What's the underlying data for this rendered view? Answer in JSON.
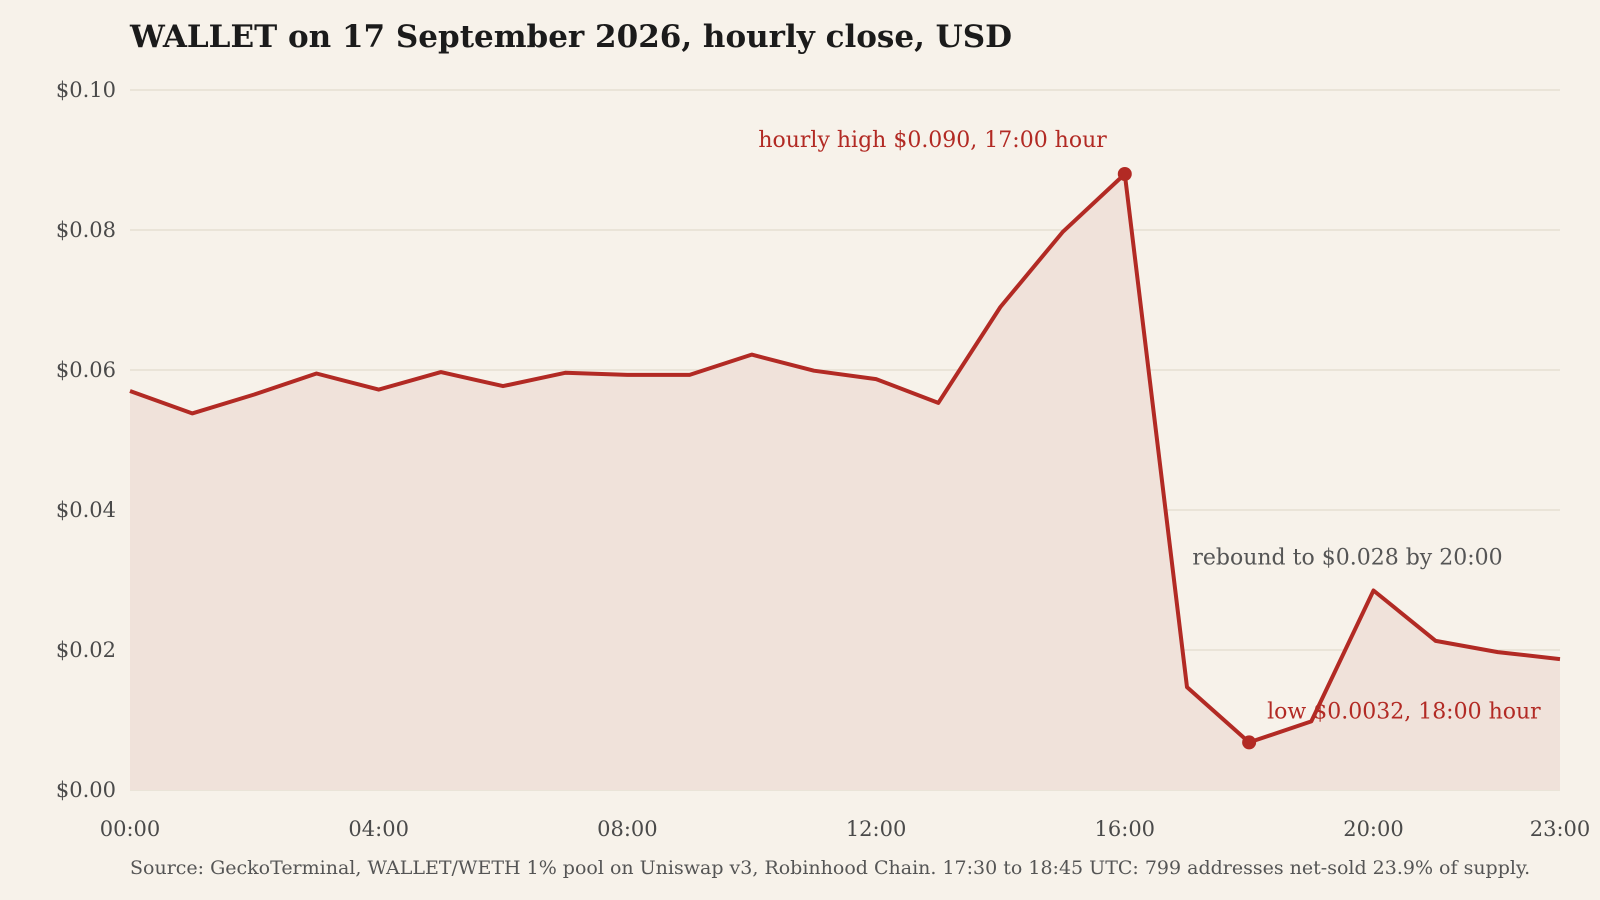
{
  "chart_data": {
    "type": "area",
    "title": "WALLET on 17 September 2026, hourly close, USD",
    "xlabel": "",
    "ylabel": "",
    "x": [
      "00:00",
      "01:00",
      "02:00",
      "03:00",
      "04:00",
      "05:00",
      "06:00",
      "07:00",
      "08:00",
      "09:00",
      "10:00",
      "11:00",
      "12:00",
      "13:00",
      "14:00",
      "15:00",
      "16:00",
      "17:00",
      "18:00",
      "19:00",
      "20:00",
      "21:00",
      "22:00",
      "23:00"
    ],
    "series": [
      {
        "values": [
          0.057,
          0.0538,
          0.0565,
          0.0595,
          0.0572,
          0.0597,
          0.0577,
          0.0596,
          0.0593,
          0.0593,
          0.0622,
          0.0599,
          0.0587,
          0.0553,
          0.069,
          0.0797,
          0.088,
          0.0147,
          0.0068,
          0.0098,
          0.0285,
          0.0213,
          0.0197,
          0.0187
        ]
      }
    ],
    "x_tick_labels": [
      "00:00",
      "04:00",
      "08:00",
      "12:00",
      "16:00",
      "20:00",
      "23:00"
    ],
    "y_tick_values": [
      0,
      0.02,
      0.04,
      0.06,
      0.08,
      0.1
    ],
    "y_tick_labels": [
      "$0.00",
      "$0.02",
      "$0.04",
      "$0.06",
      "$0.08",
      "$0.10"
    ],
    "ylim": [
      0,
      0.1
    ],
    "grid": "horizontal",
    "legend": "none",
    "colors": {
      "line": "#b22a24",
      "fill": "#f0e2da",
      "background": "#f7f2ea",
      "grid": "#e3dbcd",
      "annotation_red": "#b22a24",
      "annotation_gray": "#555555"
    },
    "annotations": [
      {
        "text": "hourly high $0.090, 17:00 hour",
        "x": "16:00",
        "y": 0.088,
        "marker": true,
        "color": "red"
      },
      {
        "text": "low $0.0032, 18:00 hour",
        "x": "18:00",
        "y": 0.0068,
        "marker": true,
        "color": "red"
      },
      {
        "text": "rebound to $0.028 by 20:00",
        "x": "20:00",
        "y": 0.0285,
        "marker": false,
        "color": "gray"
      }
    ],
    "source": "Source: GeckoTerminal, WALLET/WETH 1% pool on Uniswap v3, Robinhood Chain. 17:30 to 18:45 UTC: 799 addresses net-sold 23.9% of supply."
  }
}
